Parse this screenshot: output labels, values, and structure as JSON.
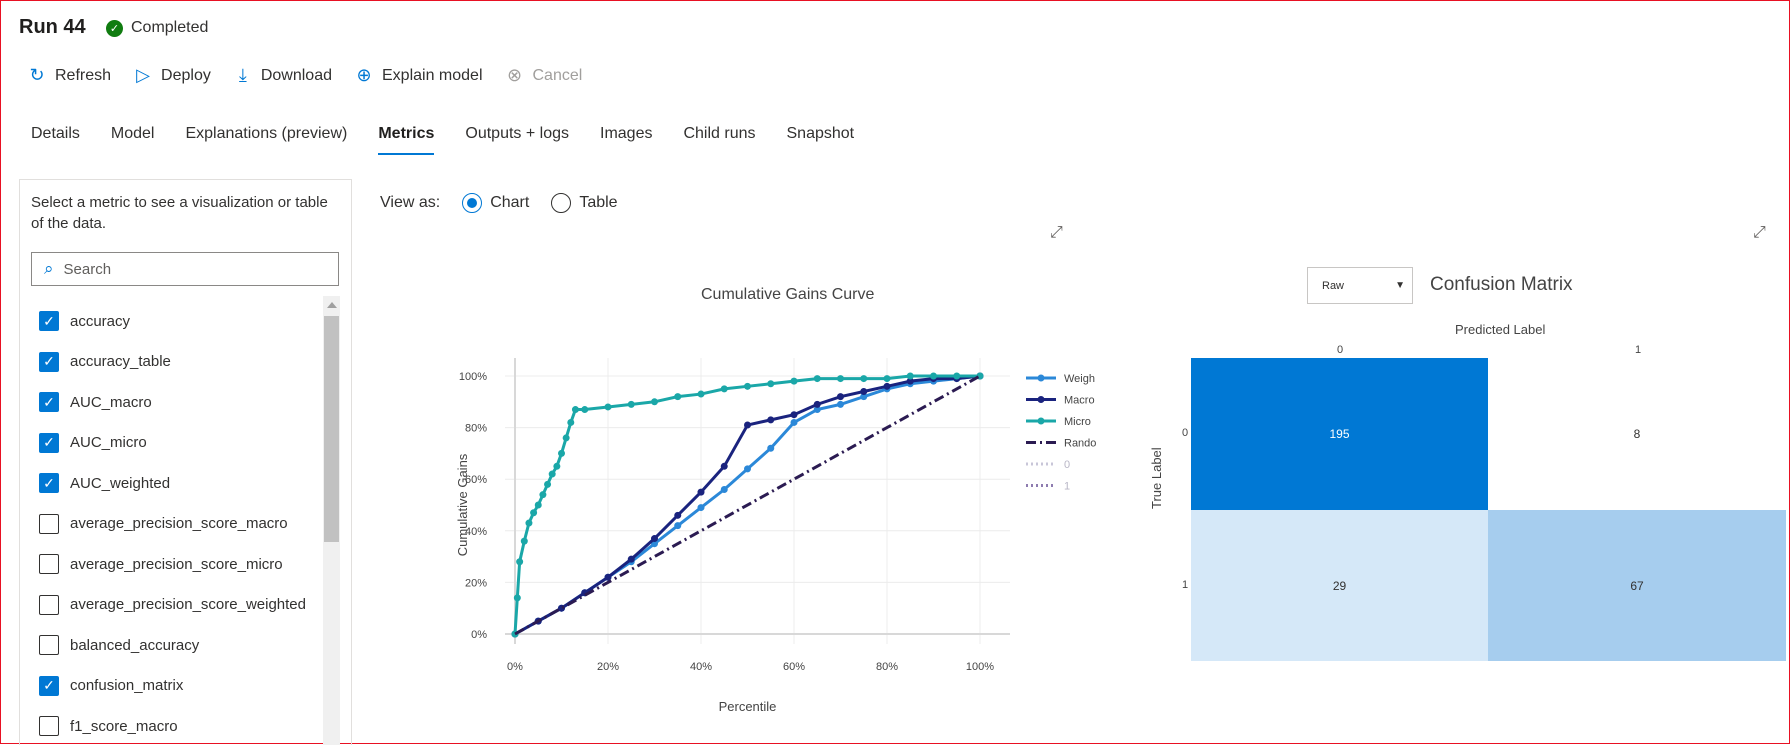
{
  "header": {
    "title": "Run 44",
    "status": "Completed"
  },
  "toolbar": {
    "refresh": "Refresh",
    "deploy": "Deploy",
    "download": "Download",
    "explain": "Explain model",
    "cancel": "Cancel"
  },
  "tabs": [
    "Details",
    "Model",
    "Explanations (preview)",
    "Metrics",
    "Outputs + logs",
    "Images",
    "Child runs",
    "Snapshot"
  ],
  "active_tab": "Metrics",
  "left_panel": {
    "hint": "Select a metric to see a visualization or table of the data.",
    "search_placeholder": "Search",
    "metrics": [
      {
        "label": "accuracy",
        "checked": true
      },
      {
        "label": "accuracy_table",
        "checked": true
      },
      {
        "label": "AUC_macro",
        "checked": true
      },
      {
        "label": "AUC_micro",
        "checked": true
      },
      {
        "label": "AUC_weighted",
        "checked": true
      },
      {
        "label": "average_precision_score_macro",
        "checked": false
      },
      {
        "label": "average_precision_score_micro",
        "checked": false
      },
      {
        "label": "average_precision_score_weighted",
        "checked": false
      },
      {
        "label": "balanced_accuracy",
        "checked": false
      },
      {
        "label": "confusion_matrix",
        "checked": true
      },
      {
        "label": "f1_score_macro",
        "checked": false
      }
    ]
  },
  "view_as": {
    "label": "View as:",
    "chart": "Chart",
    "table": "Table",
    "selected": "Chart"
  },
  "confusion_matrix": {
    "title": "Confusion Matrix",
    "select_value": "Raw",
    "x_title": "Predicted Label",
    "y_title": "True Label",
    "labels": [
      "0",
      "1"
    ],
    "values": [
      [
        195,
        8
      ],
      [
        29,
        67
      ]
    ]
  },
  "chart_data": {
    "type": "line",
    "title": "Cumulative Gains Curve",
    "xlabel": "Percentile",
    "ylabel": "Cumulative Gains",
    "xlim": [
      0,
      100
    ],
    "ylim": [
      0,
      100
    ],
    "x_ticks": [
      "0%",
      "20%",
      "40%",
      "60%",
      "80%",
      "100%"
    ],
    "y_ticks": [
      "0%",
      "20%",
      "40%",
      "60%",
      "80%",
      "100%"
    ],
    "grid": true,
    "legend_position": "right",
    "series": [
      {
        "name": "Weigh",
        "color": "#2b88d8",
        "style": "solid",
        "markers": true,
        "x": [
          0,
          5,
          10,
          15,
          20,
          25,
          30,
          35,
          40,
          45,
          50,
          55,
          60,
          65,
          70,
          75,
          80,
          85,
          90,
          95,
          100
        ],
        "y": [
          0,
          5,
          10,
          16,
          22,
          28,
          35,
          42,
          49,
          56,
          64,
          72,
          82,
          87,
          89,
          92,
          95,
          97,
          98,
          99,
          100
        ]
      },
      {
        "name": "Macro",
        "color": "#1a237e",
        "style": "solid",
        "markers": true,
        "x": [
          0,
          5,
          10,
          15,
          20,
          25,
          30,
          35,
          40,
          45,
          50,
          55,
          60,
          65,
          70,
          75,
          80,
          85,
          90,
          95,
          100
        ],
        "y": [
          0,
          5,
          10,
          16,
          22,
          29,
          37,
          46,
          55,
          65,
          81,
          83,
          85,
          89,
          92,
          94,
          96,
          98,
          99,
          99,
          100
        ]
      },
      {
        "name": "Micro",
        "color": "#1aa7a8",
        "style": "solid",
        "markers": true,
        "x": [
          0,
          0.5,
          1,
          2,
          3,
          4,
          5,
          6,
          7,
          8,
          9,
          10,
          11,
          12,
          13,
          15,
          20,
          25,
          30,
          35,
          40,
          45,
          50,
          55,
          60,
          65,
          70,
          75,
          80,
          85,
          90,
          95,
          100
        ],
        "y": [
          0,
          14,
          28,
          36,
          43,
          47,
          50,
          54,
          58,
          62,
          65,
          70,
          76,
          82,
          87,
          87,
          88,
          89,
          90,
          92,
          93,
          95,
          96,
          97,
          98,
          99,
          99,
          99,
          99,
          100,
          100,
          100,
          100
        ]
      },
      {
        "name": "Rando",
        "color": "#2b1b52",
        "style": "dashdot",
        "markers": false,
        "x": [
          0,
          100
        ],
        "y": [
          0,
          100
        ]
      },
      {
        "name": "0",
        "color": "#c8c6d8",
        "style": "dotted",
        "markers": false,
        "x": [],
        "y": []
      },
      {
        "name": "1",
        "color": "#8e7cb0",
        "style": "dotted",
        "markers": false,
        "x": [],
        "y": []
      }
    ]
  }
}
